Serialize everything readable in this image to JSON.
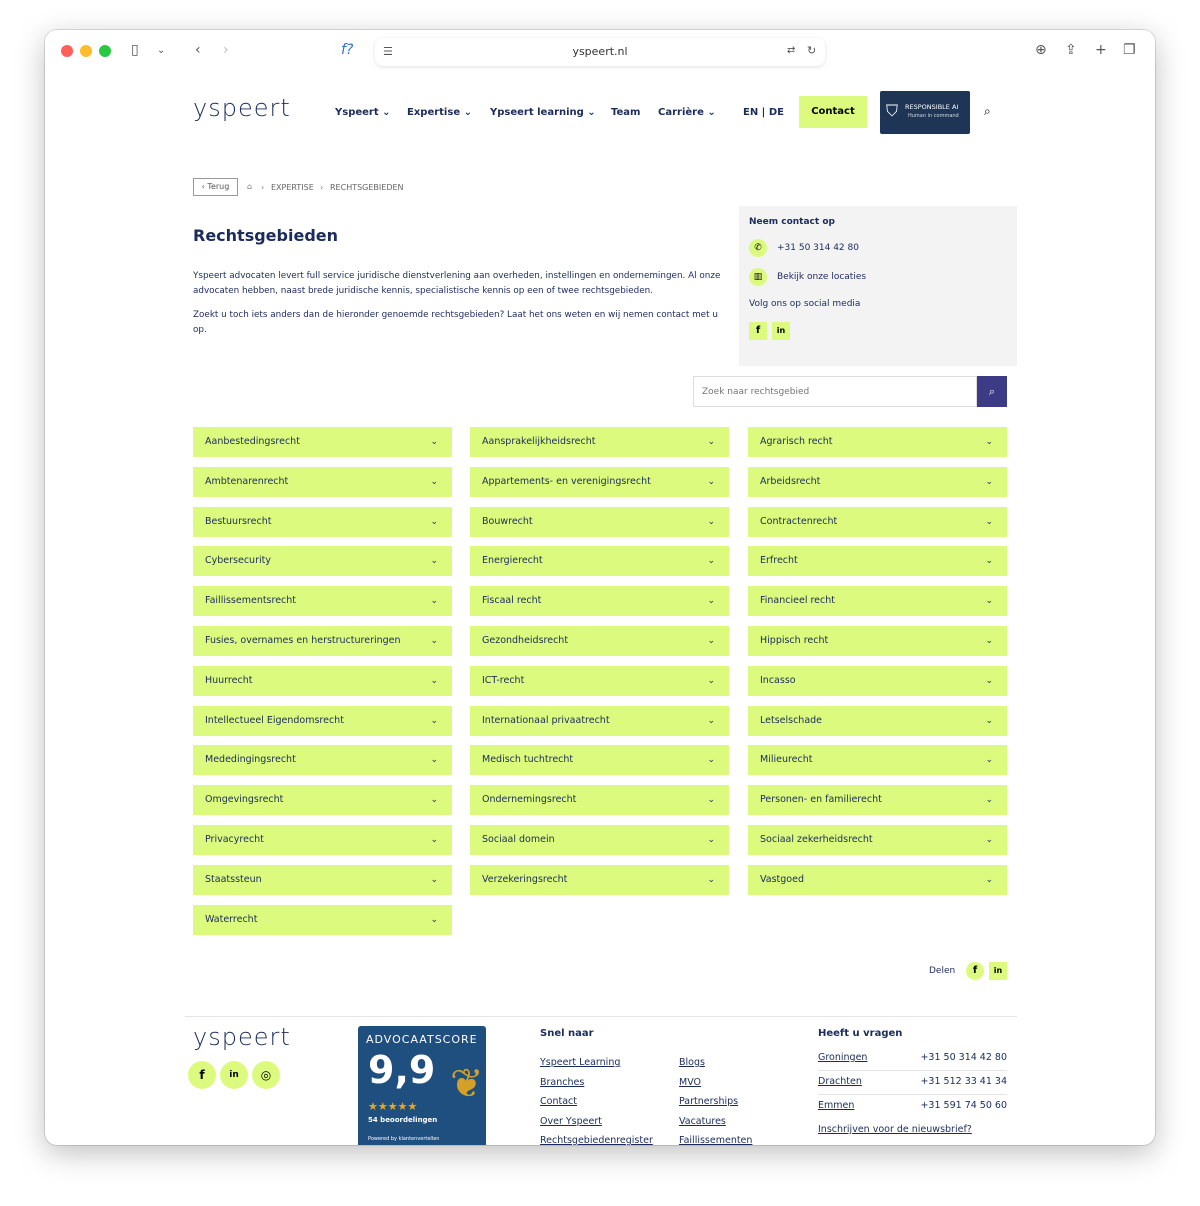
{
  "browser": {
    "url": "yspeert.nl",
    "icons": [
      "sidebar-icon",
      "chevron-down-icon",
      "back-icon",
      "forward-icon",
      "function-icon",
      "reader-icon",
      "translate-icon",
      "reload-icon",
      "download-icon",
      "share-icon",
      "new-tab-icon",
      "tabs-icon"
    ]
  },
  "header": {
    "logo": "yspeert",
    "nav": [
      "Yspeert",
      "Expertise",
      "Ypseert learning",
      "Team",
      "Carrière"
    ],
    "lang": "EN | DE",
    "contact": "Contact",
    "badge_title": "RESPONSIBLE AI",
    "badge_sub": "Human in command"
  },
  "breadcrumb": {
    "back": "Terug",
    "items": [
      "EXPERTISE",
      "RECHTSGEBIEDEN"
    ]
  },
  "main": {
    "title": "Rechtsgebieden",
    "p1": "Yspeert advocaten levert full service juridische dienstverlening aan overheden, instellingen en ondernemingen. Al onze advocaten hebben, naast brede juridische kennis, specialistische kennis op een of twee rechtsgebieden.",
    "p2": "Zoekt u toch iets anders dan de hieronder genoemde rechtsgebieden? Laat het ons weten en wij nemen contact met u op."
  },
  "contact_box": {
    "title": "Neem contact op",
    "phone": "+31 50 314 42 80",
    "locations": "Bekijk onze locaties",
    "social": "Volg ons op social media"
  },
  "search": {
    "placeholder": "Zoek naar rechtsgebied"
  },
  "areas": [
    "Aanbestedingsrecht",
    "Aansprakelijkheidsrecht",
    "Agrarisch recht",
    "Ambtenarenrecht",
    "Appartements- en verenigingsrecht",
    "Arbeidsrecht",
    "Bestuursrecht",
    "Bouwrecht",
    "Contractenrecht",
    "Cybersecurity",
    "Energierecht",
    "Erfrecht",
    "Faillissementsrecht",
    "Fiscaal recht",
    "Financieel recht",
    "Fusies, overnames en herstructureringen",
    "Gezondheidsrecht",
    "Hippisch recht",
    "Huurrecht",
    "ICT-recht",
    "Incasso",
    "Intellectueel Eigendomsrecht",
    "Internationaal privaatrecht",
    "Letselschade",
    "Mededingingsrecht",
    "Medisch tuchtrecht",
    "Milieurecht",
    "Omgevingsrecht",
    "Ondernemingsrecht",
    "Personen- en familierecht",
    "Privacyrecht",
    "Sociaal domein",
    "Sociaal zekerheidsrecht",
    "Staatssteun",
    "Verzekeringsrecht",
    "Vastgoed",
    "Waterrecht"
  ],
  "share": {
    "label": "Delen"
  },
  "footer": {
    "logo": "yspeert",
    "score": {
      "title": "ADVOCAATSCORE",
      "value": "9,9",
      "reviews": "54 beoordelingen",
      "powered": "Powered by klantenvertellen"
    },
    "snel_title": "Snel naar",
    "links_col1": [
      "Yspeert Learning",
      "Branches",
      "Contact",
      "Over Yspeert",
      "Rechtsgebiedenregister"
    ],
    "links_col2": [
      "Blogs",
      "MVO",
      "Partnerships",
      "Vacatures",
      "Faillissementen"
    ],
    "vragen_title": "Heeft u vragen",
    "offices": [
      {
        "city": "Groningen",
        "phone": "+31 50 314 42 80"
      },
      {
        "city": "Drachten",
        "phone": "+31 512 33 41 34"
      },
      {
        "city": "Emmen",
        "phone": "+31 591 74 50 60"
      }
    ],
    "newsletter": "Inschrijven voor de nieuwsbrief?"
  },
  "colors": {
    "navy": "#1b2b5b",
    "lime": "#dcfb7e",
    "search_button": "#3d3a86"
  }
}
